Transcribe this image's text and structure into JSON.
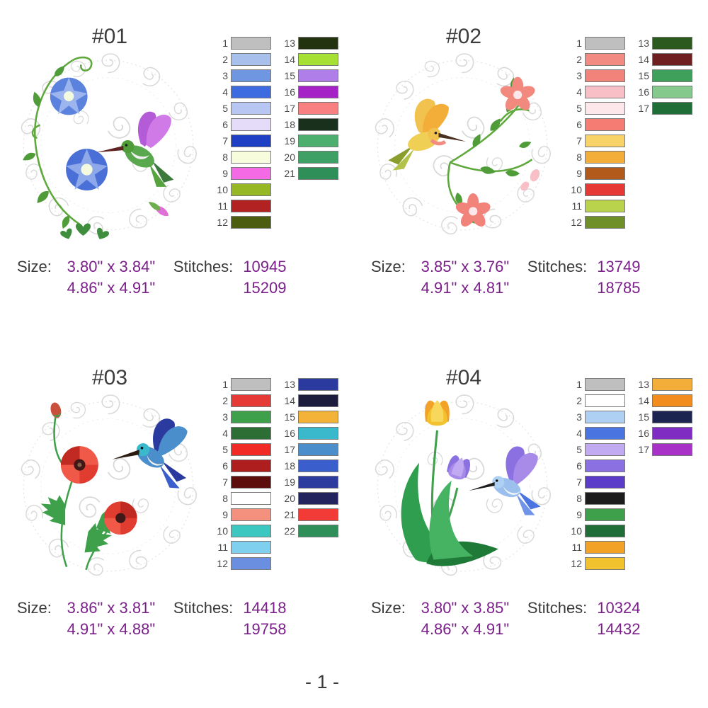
{
  "page": {
    "number_label": "- 1 -"
  },
  "labels": {
    "size": "Size:",
    "stitches": "Stitches:"
  },
  "theme": {
    "value_purple": "#7b1f8a",
    "label_color": "#3a3a3a",
    "title_color": "#3c3c3c",
    "page_bg": "#ffffff"
  },
  "designs": [
    {
      "title": "#01",
      "size_small": "3.80\" x 3.84\"",
      "size_large": "4.86\" x 4.91\"",
      "stitches_small": "10945",
      "stitches_large": "15209",
      "colors": [
        "#bfbfbf",
        "#a8c0ec",
        "#6f96e0",
        "#3c6ce0",
        "#b7c6f2",
        "#e4dcf8",
        "#1f3fc4",
        "#f7fcdc",
        "#f46ae4",
        "#97b825",
        "#b22222",
        "#4c5d10",
        "#233310",
        "#a6e035",
        "#b07ee8",
        "#a422c6",
        "#f98080",
        "#18301c",
        "#4caf6e",
        "#3fa065",
        "#2f8f58"
      ]
    },
    {
      "title": "#02",
      "size_small": "3.85\" x 3.76\"",
      "size_large": "4.91\" x 4.81\"",
      "stitches_small": "13749",
      "stitches_large": "18785",
      "colors": [
        "#bfbfbf",
        "#f28b82",
        "#f2837a",
        "#f8bfc6",
        "#fde7ea",
        "#f47c72",
        "#f8d468",
        "#f2ae38",
        "#b25a1c",
        "#e63936",
        "#b9d44c",
        "#6f8f28",
        "#2c5a1e",
        "#6e2020",
        "#3fa05c",
        "#86c98c",
        "#1f6e38"
      ]
    },
    {
      "title": "#03",
      "size_small": "3.86\" x 3.81\"",
      "size_large": "4.91\" x 4.88\"",
      "stitches_small": "14418",
      "stitches_large": "19758",
      "colors": [
        "#bfbfbf",
        "#e63a36",
        "#3fa04c",
        "#2c6e33",
        "#f22a26",
        "#ae1e1e",
        "#5e0d0d",
        "#ffffff",
        "#f4907e",
        "#3cc8c0",
        "#7fd0ee",
        "#6a8fe0",
        "#2b3a9e",
        "#1c1c3c",
        "#f2b338",
        "#3ab8cc",
        "#4a8ecc",
        "#3a5ecc",
        "#2c3c9e",
        "#23235e",
        "#f23a36",
        "#2f8f58"
      ]
    },
    {
      "title": "#04",
      "size_small": "3.80\" x 3.85\"",
      "size_large": "4.86\" x 4.91\"",
      "stitches_small": "10324",
      "stitches_large": "14432",
      "colors": [
        "#bfbfbf",
        "#ffffff",
        "#aed0f2",
        "#4a74e0",
        "#c2aaf2",
        "#8a70e0",
        "#5a3cc8",
        "#1c1c1c",
        "#3fa04c",
        "#1f6e38",
        "#f2a227",
        "#f2c22e",
        "#f2ae38",
        "#f28c1e",
        "#1c2450",
        "#7e2cc2",
        "#a832c8"
      ]
    }
  ]
}
